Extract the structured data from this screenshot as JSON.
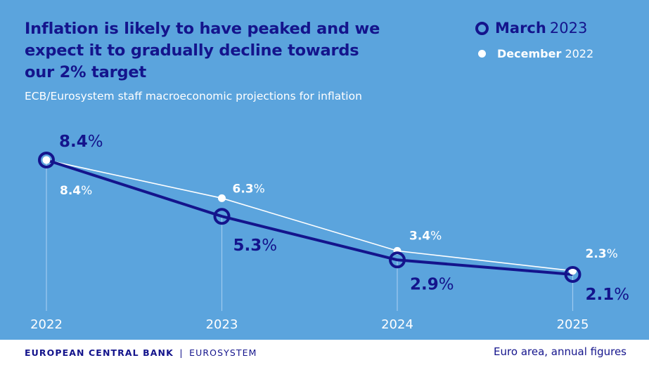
{
  "header": {
    "title_lines": [
      "Inflation is likely to have peaked and we",
      "expect it to gradually decline towards",
      "our 2% target"
    ],
    "subtitle": "ECB/Eurosystem staff macroeconomic projections for inflation"
  },
  "legend": {
    "march": {
      "month": "March",
      "year": "2023"
    },
    "december": {
      "month": "December",
      "year": "2022"
    }
  },
  "footer": {
    "org": "EUROPEAN CENTRAL BANK",
    "separator": "|",
    "system": "EUROSYSTEM",
    "note": "Euro area, annual figures"
  },
  "colors": {
    "background": "#5ba4dd",
    "primary": "#14148c",
    "secondary": "#ffffff",
    "gridline": "#9fcaf0"
  },
  "chart_data": {
    "type": "line",
    "x": [
      "2022",
      "2023",
      "2024",
      "2025"
    ],
    "series": [
      {
        "name": "March 2023",
        "values": [
          8.4,
          5.3,
          2.9,
          2.1
        ],
        "labels": [
          "8.4%",
          "5.3%",
          "2.9%",
          "2.1%"
        ]
      },
      {
        "name": "December 2022",
        "values": [
          8.4,
          6.3,
          3.4,
          2.3
        ],
        "labels": [
          "8.4%",
          "6.3%",
          "3.4%",
          "2.3%"
        ]
      }
    ],
    "unit": "%",
    "ylim": [
      0,
      10
    ],
    "grid": "vertical drop lines at each year",
    "legend_position": "top-right"
  }
}
